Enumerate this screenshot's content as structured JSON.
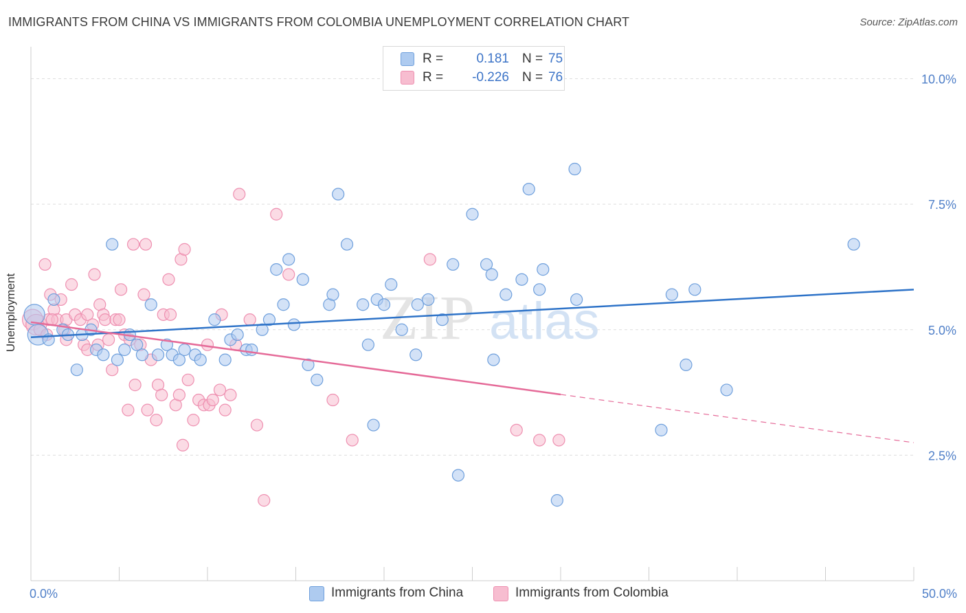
{
  "title": "IMMIGRANTS FROM CHINA VS IMMIGRANTS FROM COLOMBIA UNEMPLOYMENT CORRELATION CHART",
  "source": "Source: ZipAtlas.com",
  "watermark": {
    "zip": "ZIP",
    "atlas": "atlas"
  },
  "legend": {
    "r_label": "R =",
    "n_label": "N =",
    "rows": [
      {
        "r": "0.181",
        "n": "75"
      },
      {
        "r": "-0.226",
        "n": "76"
      }
    ]
  },
  "colors": {
    "china_fill": "#aecbf0",
    "china_stroke": "#6e9fdc",
    "china_line": "#2e73c8",
    "colombia_fill": "#f7bdd0",
    "colombia_stroke": "#ee8fb0",
    "colombia_line": "#e56a98",
    "axis_text": "#4f7fc8",
    "grid": "#dddddd"
  },
  "chart_data": {
    "type": "scatter",
    "ylabel": "Unemployment",
    "xlim": [
      0,
      50
    ],
    "ylim": [
      0,
      10.5
    ],
    "x_tick_labels": [
      "0.0%",
      "50.0%"
    ],
    "y_ticks": [
      {
        "value": 2.5,
        "label": "2.5%"
      },
      {
        "value": 5.0,
        "label": "5.0%"
      },
      {
        "value": 7.5,
        "label": "7.5%"
      },
      {
        "value": 10.0,
        "label": "10.0%"
      }
    ],
    "grid": true,
    "legend_position": "top-center",
    "series": [
      {
        "name": "Immigrants from China",
        "points": [
          [
            0.2,
            5.3
          ],
          [
            0.4,
            4.9
          ],
          [
            1.0,
            4.8
          ],
          [
            1.3,
            5.6
          ],
          [
            1.8,
            5.0
          ],
          [
            2.1,
            4.9
          ],
          [
            2.6,
            4.2
          ],
          [
            2.9,
            4.9
          ],
          [
            3.4,
            5.0
          ],
          [
            3.7,
            4.6
          ],
          [
            4.1,
            4.5
          ],
          [
            4.6,
            6.7
          ],
          [
            4.9,
            4.4
          ],
          [
            5.3,
            4.6
          ],
          [
            5.6,
            4.9
          ],
          [
            6.0,
            4.7
          ],
          [
            6.3,
            4.5
          ],
          [
            6.8,
            5.5
          ],
          [
            7.2,
            4.5
          ],
          [
            7.7,
            4.7
          ],
          [
            8.0,
            4.5
          ],
          [
            8.4,
            4.4
          ],
          [
            8.7,
            4.6
          ],
          [
            9.3,
            4.5
          ],
          [
            9.6,
            4.4
          ],
          [
            10.4,
            5.2
          ],
          [
            11.0,
            4.4
          ],
          [
            11.3,
            4.8
          ],
          [
            11.7,
            4.9
          ],
          [
            12.2,
            4.6
          ],
          [
            12.5,
            4.6
          ],
          [
            13.1,
            5.0
          ],
          [
            13.5,
            5.2
          ],
          [
            13.9,
            6.2
          ],
          [
            14.3,
            5.5
          ],
          [
            14.6,
            6.4
          ],
          [
            14.9,
            5.1
          ],
          [
            15.4,
            6.0
          ],
          [
            15.7,
            4.3
          ],
          [
            16.2,
            4.0
          ],
          [
            16.9,
            5.5
          ],
          [
            17.1,
            5.7
          ],
          [
            17.4,
            7.7
          ],
          [
            17.9,
            6.7
          ],
          [
            18.8,
            5.5
          ],
          [
            19.1,
            4.7
          ],
          [
            19.4,
            3.1
          ],
          [
            19.6,
            5.6
          ],
          [
            20.0,
            5.5
          ],
          [
            20.4,
            5.9
          ],
          [
            21.0,
            5.0
          ],
          [
            21.8,
            4.5
          ],
          [
            21.9,
            5.5
          ],
          [
            22.5,
            5.6
          ],
          [
            23.3,
            5.2
          ],
          [
            23.9,
            6.3
          ],
          [
            24.2,
            2.1
          ],
          [
            25.0,
            7.3
          ],
          [
            25.8,
            6.3
          ],
          [
            26.1,
            6.1
          ],
          [
            26.2,
            4.4
          ],
          [
            26.9,
            5.7
          ],
          [
            27.8,
            6.0
          ],
          [
            28.2,
            7.8
          ],
          [
            28.8,
            5.8
          ],
          [
            29.0,
            6.2
          ],
          [
            29.8,
            1.6
          ],
          [
            30.8,
            8.2
          ],
          [
            30.9,
            5.6
          ],
          [
            35.7,
            3.0
          ],
          [
            36.3,
            5.7
          ],
          [
            37.1,
            4.3
          ],
          [
            37.6,
            5.8
          ],
          [
            39.4,
            3.8
          ],
          [
            46.6,
            6.7
          ]
        ],
        "trend": {
          "x": [
            0,
            50
          ],
          "y": [
            4.85,
            5.8
          ],
          "dashed_from": null
        }
      },
      {
        "name": "Immigrants from Colombia",
        "points": [
          [
            0.1,
            5.2
          ],
          [
            0.3,
            5.1
          ],
          [
            0.5,
            5.0
          ],
          [
            0.8,
            6.3
          ],
          [
            1.0,
            5.2
          ],
          [
            1.1,
            5.7
          ],
          [
            1.3,
            5.4
          ],
          [
            1.5,
            5.2
          ],
          [
            1.7,
            5.6
          ],
          [
            1.9,
            5.0
          ],
          [
            2.0,
            5.2
          ],
          [
            2.3,
            5.9
          ],
          [
            2.5,
            5.3
          ],
          [
            2.8,
            5.2
          ],
          [
            3.0,
            4.7
          ],
          [
            3.2,
            5.3
          ],
          [
            3.5,
            5.1
          ],
          [
            3.6,
            6.1
          ],
          [
            3.8,
            4.7
          ],
          [
            3.9,
            5.5
          ],
          [
            4.1,
            5.3
          ],
          [
            4.2,
            5.2
          ],
          [
            4.4,
            4.8
          ],
          [
            4.6,
            4.2
          ],
          [
            4.8,
            5.2
          ],
          [
            5.0,
            5.2
          ],
          [
            5.1,
            5.8
          ],
          [
            5.3,
            4.9
          ],
          [
            5.5,
            3.4
          ],
          [
            5.6,
            4.8
          ],
          [
            5.8,
            6.7
          ],
          [
            5.9,
            3.9
          ],
          [
            6.2,
            4.7
          ],
          [
            6.4,
            5.7
          ],
          [
            6.5,
            6.7
          ],
          [
            6.6,
            3.4
          ],
          [
            6.8,
            4.4
          ],
          [
            7.1,
            3.2
          ],
          [
            7.2,
            3.9
          ],
          [
            7.4,
            3.7
          ],
          [
            7.5,
            5.3
          ],
          [
            7.8,
            6.0
          ],
          [
            7.9,
            5.3
          ],
          [
            8.2,
            3.5
          ],
          [
            8.4,
            3.7
          ],
          [
            8.5,
            6.4
          ],
          [
            8.6,
            2.7
          ],
          [
            8.7,
            6.6
          ],
          [
            8.9,
            4.0
          ],
          [
            9.2,
            3.2
          ],
          [
            9.5,
            3.6
          ],
          [
            9.8,
            3.5
          ],
          [
            10.0,
            4.7
          ],
          [
            10.1,
            3.5
          ],
          [
            10.3,
            3.6
          ],
          [
            10.7,
            3.8
          ],
          [
            10.8,
            5.3
          ],
          [
            11.0,
            3.4
          ],
          [
            11.3,
            3.7
          ],
          [
            11.6,
            4.7
          ],
          [
            11.8,
            7.7
          ],
          [
            12.4,
            5.2
          ],
          [
            12.8,
            3.1
          ],
          [
            13.2,
            1.6
          ],
          [
            13.9,
            7.3
          ],
          [
            14.6,
            6.1
          ],
          [
            17.1,
            3.6
          ],
          [
            18.2,
            2.8
          ],
          [
            22.6,
            6.4
          ],
          [
            27.5,
            3.0
          ],
          [
            28.8,
            2.8
          ],
          [
            29.9,
            2.8
          ],
          [
            1.2,
            5.2
          ],
          [
            2.0,
            4.8
          ],
          [
            0.9,
            4.9
          ],
          [
            3.2,
            4.6
          ]
        ],
        "trend": {
          "x": [
            0,
            50
          ],
          "y": [
            5.15,
            2.75
          ],
          "dashed_from": 30
        }
      }
    ]
  },
  "bottom_legend": [
    "Immigrants from China",
    "Immigrants from Colombia"
  ]
}
